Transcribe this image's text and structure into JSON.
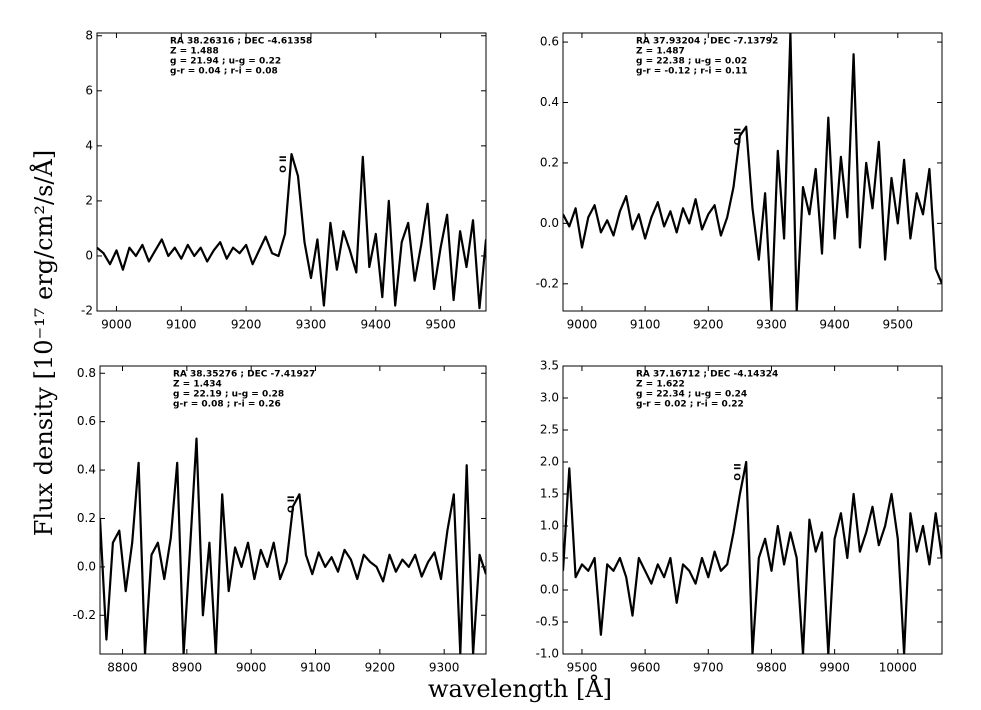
{
  "figure": {
    "xlabel": "wavelength [Å]",
    "ylabel": "Flux density [10⁻¹⁷ erg/cm²/s/Å]"
  },
  "chart_data": [
    {
      "type": "line",
      "line_label": "O II",
      "annotations": [
        "RA 38.26316 ; DEC -4.61358",
        "Z = 1.488",
        "g = 21.94 ; u-g = 0.22",
        "g-r = 0.04 ; r-i = 0.08"
      ],
      "x": [
        8970,
        8980,
        8990,
        9000,
        9010,
        9020,
        9030,
        9040,
        9050,
        9060,
        9070,
        9080,
        9090,
        9100,
        9110,
        9120,
        9130,
        9140,
        9150,
        9160,
        9170,
        9180,
        9190,
        9200,
        9210,
        9220,
        9230,
        9240,
        9250,
        9260,
        9270,
        9280,
        9290,
        9300,
        9310,
        9320,
        9330,
        9340,
        9350,
        9360,
        9370,
        9380,
        9390,
        9400,
        9410,
        9420,
        9430,
        9440,
        9450,
        9460,
        9470,
        9480,
        9490,
        9500,
        9510,
        9520,
        9530,
        9540,
        9550,
        9560,
        9570
      ],
      "series": [
        {
          "color": "#000000",
          "values": [
            0.3,
            0.1,
            -0.3,
            0.2,
            -0.5,
            0.3,
            0.0,
            0.4,
            -0.2,
            0.2,
            0.6,
            0.0,
            0.3,
            -0.1,
            0.4,
            0.0,
            0.3,
            -0.2,
            0.2,
            0.5,
            -0.1,
            0.3,
            0.1,
            0.4,
            -0.3,
            0.2,
            0.7,
            0.1,
            0.0,
            0.8,
            3.7,
            2.9,
            0.5,
            -0.8,
            0.6,
            -1.8,
            1.2,
            -0.5,
            0.9,
            0.2,
            -0.6,
            3.6,
            -0.4,
            0.8,
            -1.5,
            2.0,
            -1.8,
            0.5,
            1.2,
            -0.9,
            0.4,
            1.9,
            -1.2,
            0.3,
            1.5,
            -1.6,
            0.9,
            -0.4,
            1.3,
            -1.9,
            0.6
          ]
        }
      ],
      "xlim": [
        8970,
        9570
      ],
      "xticks": [
        9000,
        9100,
        9200,
        9300,
        9400,
        9500
      ],
      "ylim": [
        -2,
        8.1
      ],
      "yticks": [
        -2,
        0,
        2,
        4,
        6,
        8
      ]
    },
    {
      "type": "line",
      "line_label": "O II",
      "annotations": [
        "RA 37.93204 ; DEC -7.13792",
        "Z = 1.487",
        "g = 22.38 ; u-g = 0.02",
        "g-r = -0.12 ; r-i = 0.11"
      ],
      "x": [
        8970,
        8980,
        8990,
        9000,
        9010,
        9020,
        9030,
        9040,
        9050,
        9060,
        9070,
        9080,
        9090,
        9100,
        9110,
        9120,
        9130,
        9140,
        9150,
        9160,
        9170,
        9180,
        9190,
        9200,
        9210,
        9220,
        9230,
        9240,
        9250,
        9260,
        9270,
        9280,
        9290,
        9300,
        9310,
        9320,
        9330,
        9340,
        9350,
        9360,
        9370,
        9380,
        9390,
        9400,
        9410,
        9420,
        9430,
        9440,
        9450,
        9460,
        9470,
        9480,
        9490,
        9500,
        9510,
        9520,
        9530,
        9540,
        9550,
        9560,
        9570
      ],
      "series": [
        {
          "color": "#000000",
          "values": [
            0.03,
            -0.01,
            0.05,
            -0.08,
            0.02,
            0.06,
            -0.03,
            0.01,
            -0.04,
            0.04,
            0.09,
            -0.02,
            0.03,
            -0.05,
            0.02,
            0.07,
            -0.01,
            0.04,
            -0.03,
            0.05,
            0.0,
            0.08,
            -0.02,
            0.03,
            0.06,
            -0.04,
            0.02,
            0.12,
            0.29,
            0.32,
            0.05,
            -0.12,
            0.1,
            -0.29,
            0.24,
            -0.05,
            0.63,
            -0.29,
            0.12,
            0.03,
            0.18,
            -0.1,
            0.35,
            -0.05,
            0.22,
            0.02,
            0.56,
            -0.08,
            0.2,
            0.05,
            0.27,
            -0.12,
            0.15,
            0.0,
            0.21,
            -0.05,
            0.1,
            0.03,
            0.18,
            -0.15,
            -0.2
          ]
        }
      ],
      "xlim": [
        8970,
        9570
      ],
      "xticks": [
        9000,
        9100,
        9200,
        9300,
        9400,
        9500
      ],
      "ylim": [
        -0.29,
        0.63
      ],
      "yticks": [
        -0.2,
        {
          "value": 0,
          "label": "0.0"
        },
        0.2,
        0.4,
        0.6
      ]
    },
    {
      "type": "line",
      "line_label": "O II",
      "annotations": [
        "RA 38.35276 ; DEC -7.41927",
        "Z = 1.434",
        "g = 22.19 ; u-g = 0.28",
        "g-r = 0.08 ; r-i = 0.26"
      ],
      "x": [
        8765,
        8775,
        8785,
        8795,
        8805,
        8815,
        8825,
        8835,
        8845,
        8855,
        8865,
        8875,
        8885,
        8895,
        8905,
        8915,
        8925,
        8935,
        8945,
        8955,
        8965,
        8975,
        8985,
        8995,
        9005,
        9015,
        9025,
        9035,
        9045,
        9055,
        9065,
        9075,
        9085,
        9095,
        9105,
        9115,
        9125,
        9135,
        9145,
        9155,
        9165,
        9175,
        9185,
        9195,
        9205,
        9215,
        9225,
        9235,
        9245,
        9255,
        9265,
        9275,
        9285,
        9295,
        9305,
        9315,
        9325,
        9335,
        9345,
        9355,
        9365
      ],
      "series": [
        {
          "color": "#000000",
          "values": [
            0.2,
            -0.3,
            0.1,
            0.15,
            -0.1,
            0.1,
            0.43,
            -0.36,
            0.05,
            0.1,
            -0.05,
            0.12,
            0.43,
            -0.36,
            0.08,
            0.53,
            -0.2,
            0.1,
            -0.36,
            0.3,
            -0.1,
            0.08,
            0.0,
            0.1,
            -0.05,
            0.07,
            0.0,
            0.1,
            -0.05,
            0.02,
            0.25,
            0.3,
            0.05,
            -0.03,
            0.06,
            0.0,
            0.04,
            -0.02,
            0.07,
            0.03,
            -0.05,
            0.05,
            0.02,
            0.0,
            -0.06,
            0.05,
            -0.02,
            0.03,
            0.0,
            0.05,
            -0.04,
            0.02,
            0.06,
            -0.05,
            0.15,
            0.3,
            -0.36,
            0.42,
            -0.36,
            0.05,
            -0.03
          ]
        }
      ],
      "xlim": [
        8765,
        9365
      ],
      "xticks": [
        8800,
        8900,
        9000,
        9100,
        9200,
        9300
      ],
      "ylim": [
        -0.36,
        0.83
      ],
      "yticks": [
        -0.2,
        {
          "value": 0,
          "label": "0.0"
        },
        0.2,
        0.4,
        0.6,
        0.8
      ]
    },
    {
      "type": "line",
      "line_label": "O II",
      "annotations": [
        "RA 37.16712 ; DEC -4.14324",
        "Z = 1.622",
        "g = 22.34 ; u-g = 0.24",
        "g-r = 0.02 ; r-i = 0.22"
      ],
      "x": [
        9470,
        9480,
        9490,
        9500,
        9510,
        9520,
        9530,
        9540,
        9550,
        9560,
        9570,
        9580,
        9590,
        9600,
        9610,
        9620,
        9630,
        9640,
        9650,
        9660,
        9670,
        9680,
        9690,
        9700,
        9710,
        9720,
        9730,
        9740,
        9750,
        9760,
        9770,
        9780,
        9790,
        9800,
        9810,
        9820,
        9830,
        9840,
        9850,
        9860,
        9870,
        9880,
        9890,
        9900,
        9910,
        9920,
        9930,
        9940,
        9950,
        9960,
        9970,
        9980,
        9990,
        10000,
        10010,
        10020,
        10030,
        10040,
        10050,
        10060,
        10070
      ],
      "series": [
        {
          "color": "#000000",
          "values": [
            0.3,
            1.9,
            0.2,
            0.4,
            0.3,
            0.5,
            -0.7,
            0.4,
            0.3,
            0.5,
            0.2,
            -0.4,
            0.5,
            0.3,
            0.1,
            0.4,
            0.2,
            0.5,
            -0.2,
            0.4,
            0.3,
            0.1,
            0.5,
            0.2,
            0.6,
            0.3,
            0.4,
            0.9,
            1.5,
            2.0,
            -1.0,
            0.5,
            0.8,
            0.3,
            1.0,
            0.4,
            0.9,
            0.5,
            -1.0,
            1.1,
            0.6,
            0.9,
            -1.0,
            0.8,
            1.2,
            0.5,
            1.5,
            0.6,
            0.9,
            1.3,
            0.7,
            1.0,
            1.5,
            0.8,
            -1.0,
            1.2,
            0.6,
            1.0,
            0.4,
            1.2,
            0.5
          ]
        }
      ],
      "xlim": [
        9470,
        10070
      ],
      "xticks": [
        9500,
        9600,
        9700,
        9800,
        9900,
        10000
      ],
      "ylim": [
        -1,
        3.5
      ],
      "yticks": [
        {
          "value": -1,
          "label": "-1.0"
        },
        -0.5,
        {
          "value": 0,
          "label": "0.0"
        },
        0.5,
        {
          "value": 1,
          "label": "1.0"
        },
        1.5,
        {
          "value": 2,
          "label": "2.0"
        },
        2.5,
        {
          "value": 3,
          "label": "3.0"
        },
        3.5
      ]
    }
  ]
}
